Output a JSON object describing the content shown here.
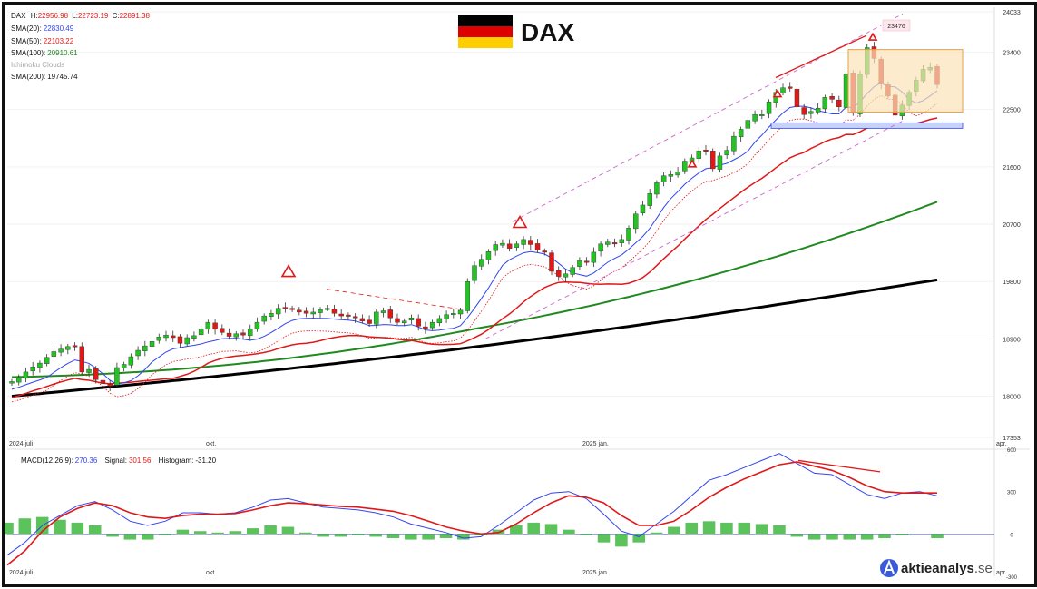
{
  "header": {
    "title": "DAX",
    "flag_colors": [
      "#000000",
      "#dd0000",
      "#ffce00"
    ]
  },
  "legend": {
    "ohlc_label": "DAX",
    "h_label": "H:",
    "h_value": "22956.98",
    "l_label": "L:",
    "l_value": "22723.19",
    "c_label": "C:",
    "c_value": "22891.38",
    "sma20_label": "SMA(20):",
    "sma20_value": "22830.49",
    "sma50_label": "SMA(50):",
    "sma50_value": "22103.22",
    "sma100_label": "SMA(100):",
    "sma100_value": "20910.61",
    "ichimoku_label": "Ichimoku Clouds",
    "sma200_label": "SMA(200):",
    "sma200_value": "19745.74"
  },
  "macd_legend": {
    "label": "MACD(12,26,9):",
    "value": "270.36",
    "signal_label": "Signal:",
    "signal_value": "301.56",
    "hist_label": "Histogram:",
    "hist_value": "-31.20"
  },
  "price_axis": {
    "ticks": [
      "24033",
      "23400",
      "22500",
      "21600",
      "20700",
      "19800",
      "18900",
      "18000",
      "17353"
    ]
  },
  "macd_axis": {
    "ticks": [
      "600",
      "300",
      "0",
      "-300"
    ]
  },
  "time_axis": {
    "labels": [
      "2024 juli",
      "okt.",
      "2025 jan.",
      "apr."
    ]
  },
  "peak_label": "23476",
  "brand": {
    "name": "aktieanalys",
    "suffix": ".se"
  },
  "colors": {
    "up": "#22c322",
    "down": "#e01818",
    "sma20": "#3344ee",
    "sma50": "#e01818",
    "sma100": "#1f8a1f",
    "sma200": "#000000",
    "macd": "#3344ee",
    "signal": "#e01818",
    "hist": "#5cc25c",
    "box": "#fbe3b8",
    "support": "#c7d3f5",
    "trend": "#cc66cc"
  },
  "chart_data": [
    {
      "type": "candlestick",
      "title": "DAX",
      "x_start": "2024-07-01",
      "x_end": "2025-04-01",
      "ylim": [
        17353,
        24033
      ],
      "y_ticks": [
        24033,
        23400,
        22500,
        21600,
        20700,
        19800,
        18900,
        18000,
        17353
      ],
      "close": [
        18230,
        18290,
        18380,
        18460,
        18520,
        18610,
        18700,
        18740,
        18780,
        18790,
        18380,
        18420,
        18260,
        18200,
        18160,
        18450,
        18500,
        18620,
        18720,
        18790,
        18860,
        18930,
        18960,
        18920,
        18830,
        18920,
        18950,
        19060,
        19160,
        19050,
        19000,
        18940,
        18980,
        18960,
        19060,
        19160,
        19260,
        19300,
        19380,
        19390,
        19360,
        19320,
        19300,
        19320,
        19360,
        19380,
        19300,
        19260,
        19260,
        19230,
        19180,
        19140,
        19320,
        19340,
        19230,
        19160,
        19180,
        19230,
        19100,
        19060,
        19160,
        19220,
        19280,
        19300,
        19350,
        19800,
        20050,
        20150,
        20270,
        20380,
        20400,
        20320,
        20390,
        20460,
        20380,
        20290,
        20260,
        19960,
        19880,
        19920,
        20020,
        20130,
        20110,
        20260,
        20390,
        20420,
        20390,
        20460,
        20640,
        20860,
        21000,
        21180,
        21350,
        21460,
        21480,
        21520,
        21690,
        21740,
        21850,
        21860,
        21570,
        21770,
        21860,
        22080,
        22190,
        22330,
        22420,
        22420,
        22620,
        22770,
        22840,
        22830,
        22540,
        22420,
        22470,
        22520,
        22690,
        22660,
        22540,
        23060,
        22440,
        23060,
        23470,
        23300,
        22900,
        22710,
        22410,
        22570,
        22770,
        22960,
        23130,
        23160,
        22890
      ],
      "open_offset_note": "",
      "series": [
        {
          "name": "SMA(20)",
          "last": 22830.49
        },
        {
          "name": "SMA(50)",
          "last": 22103.22
        },
        {
          "name": "SMA(100)",
          "last": 20910.61
        },
        {
          "name": "SMA(200)",
          "last": 19745.74
        }
      ]
    },
    {
      "type": "line",
      "title": "MACD(12,26,9)",
      "ylim": [
        -300,
        600
      ],
      "y_ticks": [
        600,
        300,
        0,
        -300
      ],
      "macd": [
        -150,
        -60,
        60,
        130,
        200,
        230,
        170,
        90,
        60,
        90,
        150,
        150,
        140,
        150,
        190,
        240,
        250,
        220,
        190,
        180,
        170,
        150,
        120,
        70,
        40,
        10,
        -30,
        -20,
        60,
        150,
        240,
        290,
        300,
        250,
        140,
        20,
        -20,
        70,
        160,
        270,
        380,
        420,
        470,
        520,
        570,
        500,
        430,
        420,
        350,
        280,
        250,
        290,
        300,
        270
      ],
      "signal": [
        -220,
        -120,
        20,
        120,
        180,
        220,
        200,
        150,
        120,
        110,
        130,
        140,
        140,
        145,
        170,
        200,
        220,
        215,
        205,
        195,
        190,
        175,
        160,
        130,
        90,
        50,
        20,
        0,
        10,
        70,
        150,
        220,
        270,
        260,
        220,
        130,
        60,
        60,
        90,
        170,
        260,
        330,
        390,
        440,
        490,
        510,
        480,
        450,
        400,
        340,
        300,
        290,
        290,
        290
      ],
      "histogram": [
        80,
        110,
        120,
        100,
        80,
        60,
        -20,
        -40,
        -40,
        -10,
        30,
        20,
        10,
        20,
        40,
        60,
        50,
        10,
        -20,
        -20,
        -10,
        -20,
        -30,
        -40,
        -40,
        -30,
        -40,
        -10,
        30,
        60,
        80,
        70,
        30,
        -10,
        -60,
        -90,
        -60,
        10,
        50,
        80,
        90,
        80,
        80,
        70,
        60,
        -20,
        -40,
        -40,
        -40,
        -40,
        -30,
        -10,
        0,
        -30
      ]
    }
  ]
}
